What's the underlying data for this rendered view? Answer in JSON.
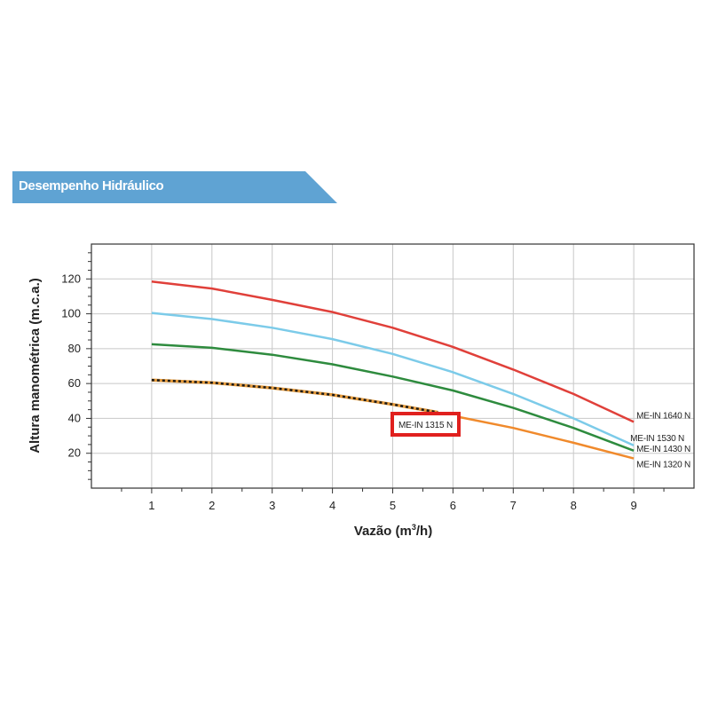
{
  "section_title": "Desempenho Hidráulico",
  "colors": {
    "banner": "#5fa3d3"
  },
  "chart_data": {
    "type": "line",
    "x_axis": {
      "label": "Vazão (m³/h)",
      "label_main": "Vazão (m",
      "label_sup": "3",
      "label_end": "/h)",
      "min": 0,
      "max": 10,
      "ticks": [
        1,
        2,
        3,
        4,
        5,
        6,
        7,
        8,
        9
      ]
    },
    "y_axis": {
      "label": "Altura manométrica (m.c.a.)",
      "min": 0,
      "max": 140,
      "ticks": [
        20,
        40,
        60,
        80,
        100,
        120
      ]
    },
    "grid": true,
    "series": [
      {
        "name": "ME-IN 1640 N",
        "color": "#e0403a",
        "style": "solid",
        "x": [
          1,
          2,
          3,
          4,
          5,
          6,
          7,
          8,
          9
        ],
        "y": [
          118.5,
          114.5,
          108,
          101,
          92,
          81,
          68,
          54,
          38
        ]
      },
      {
        "name": "ME-IN 1530 N",
        "color": "#7ccbe9",
        "style": "solid",
        "x": [
          1,
          2,
          3,
          4,
          5,
          6,
          7,
          8,
          9
        ],
        "y": [
          100.5,
          97,
          92,
          85.5,
          77,
          66.5,
          54,
          40,
          24.5
        ]
      },
      {
        "name": "ME-IN 1430 N",
        "color": "#2e8b3e",
        "style": "solid",
        "x": [
          1,
          2,
          3,
          4,
          5,
          6,
          7,
          8,
          9
        ],
        "y": [
          82.5,
          80.5,
          76.5,
          71,
          64,
          56,
          46,
          34.5,
          21.5
        ]
      },
      {
        "name": "ME-IN 1320 N",
        "color": "#f08a2c",
        "style": "solid",
        "x": [
          1,
          2,
          3,
          4,
          5,
          6,
          7,
          8,
          9
        ],
        "y": [
          62,
          60.5,
          57.5,
          53.5,
          48,
          41.5,
          34.5,
          26,
          17
        ]
      },
      {
        "name": "ME-IN 1315 N",
        "color": "#e59a3a",
        "style": "dashed",
        "x": [
          1,
          2,
          3,
          4,
          5,
          5.75
        ],
        "y": [
          62,
          60.5,
          57.5,
          53.5,
          48,
          43.5
        ]
      }
    ]
  }
}
